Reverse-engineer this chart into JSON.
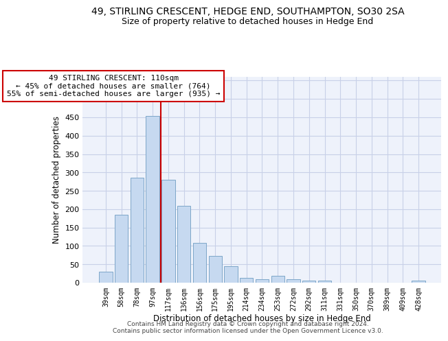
{
  "title": "49, STIRLING CRESCENT, HEDGE END, SOUTHAMPTON, SO30 2SA",
  "subtitle": "Size of property relative to detached houses in Hedge End",
  "xlabel": "Distribution of detached houses by size in Hedge End",
  "ylabel": "Number of detached properties",
  "categories": [
    "39sqm",
    "58sqm",
    "78sqm",
    "97sqm",
    "117sqm",
    "136sqm",
    "156sqm",
    "175sqm",
    "195sqm",
    "214sqm",
    "234sqm",
    "253sqm",
    "272sqm",
    "292sqm",
    "311sqm",
    "331sqm",
    "350sqm",
    "370sqm",
    "389sqm",
    "409sqm",
    "428sqm"
  ],
  "values": [
    30,
    185,
    285,
    453,
    280,
    210,
    108,
    72,
    45,
    13,
    10,
    18,
    9,
    5,
    5,
    0,
    0,
    0,
    0,
    0,
    5
  ],
  "bar_color": "#c6d9f0",
  "bar_edge_color": "#7da6c8",
  "red_line_index": 4,
  "annotation_line1": "49 STIRLING CRESCENT: 110sqm",
  "annotation_line2": "← 45% of detached houses are smaller (764)",
  "annotation_line3": "55% of semi-detached houses are larger (935) →",
  "annotation_box_color": "#ffffff",
  "annotation_box_edge": "#cc0000",
  "bg_color": "#eef2fb",
  "grid_color": "#c8d0e8",
  "ylim": [
    0,
    560
  ],
  "yticks": [
    0,
    50,
    100,
    150,
    200,
    250,
    300,
    350,
    400,
    450,
    500,
    550
  ],
  "footer": "Contains HM Land Registry data © Crown copyright and database right 2024.\nContains public sector information licensed under the Open Government Licence v3.0.",
  "title_fontsize": 10,
  "subtitle_fontsize": 9,
  "xlabel_fontsize": 8.5,
  "ylabel_fontsize": 8.5,
  "annotation_fontsize": 8
}
